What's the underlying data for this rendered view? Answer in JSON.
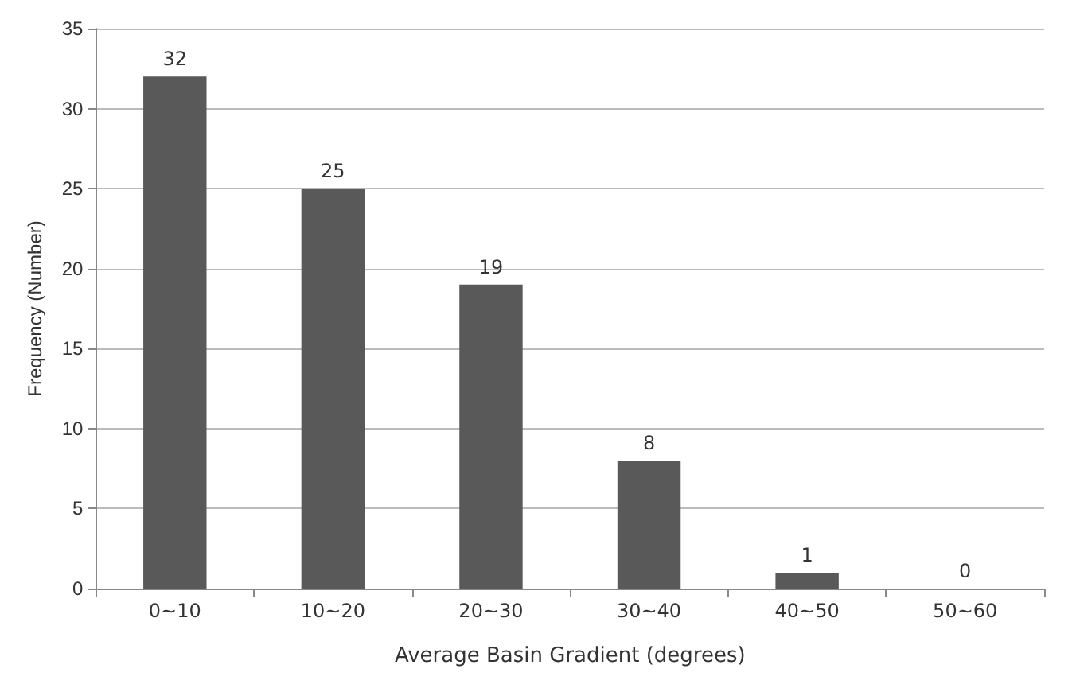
{
  "chart_data": {
    "type": "bar",
    "xlabel": "Average Basin Gradient (degrees)",
    "ylabel": "Frequency (Number)",
    "categories": [
      "0~10",
      "10~20",
      "20~30",
      "30~40",
      "40~50",
      "50~60"
    ],
    "values": [
      32,
      25,
      19,
      8,
      1,
      0
    ],
    "color": "#595959",
    "ylim": [
      0,
      35
    ],
    "yticks": [
      0,
      5,
      10,
      15,
      20,
      25,
      30,
      35
    ],
    "grid": "y",
    "data_labels": true
  }
}
